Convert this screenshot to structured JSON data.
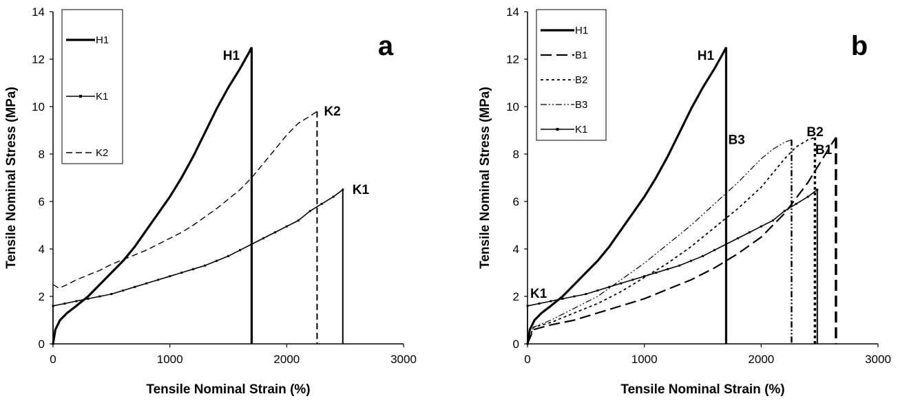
{
  "chart_data": [
    {
      "type": "line",
      "panel_label": "a",
      "xlabel": "Tensile Nominal Strain (%)",
      "ylabel": "Tensile Nominal Stress (MPa)",
      "xlim": [
        0,
        3000
      ],
      "ylim": [
        0,
        14
      ],
      "xticks": [
        "0",
        "1000",
        "2000",
        "3000"
      ],
      "yticks": [
        "0",
        "2",
        "4",
        "6",
        "8",
        "10",
        "12",
        "14"
      ],
      "grid": false,
      "legend_position": "top-left",
      "series": [
        {
          "name": "H1",
          "style": "solid-thick",
          "x": [
            0,
            20,
            60,
            120,
            200,
            300,
            400,
            500,
            600,
            700,
            800,
            900,
            1000,
            1100,
            1200,
            1300,
            1400,
            1500,
            1600,
            1680,
            1700,
            1700
          ],
          "y": [
            0,
            0.6,
            1.0,
            1.3,
            1.6,
            2.0,
            2.5,
            3.0,
            3.5,
            4.1,
            4.8,
            5.5,
            6.2,
            7.0,
            7.9,
            8.9,
            9.9,
            10.8,
            11.6,
            12.3,
            12.5,
            0
          ]
        },
        {
          "name": "K1",
          "style": "solid-marker",
          "x": [
            0,
            0,
            100,
            200,
            300,
            400,
            500,
            600,
            700,
            800,
            900,
            1000,
            1100,
            1200,
            1300,
            1400,
            1500,
            1600,
            1700,
            1800,
            1900,
            2000,
            2100,
            2200,
            2300,
            2400,
            2480,
            2480
          ],
          "y": [
            0,
            1.6,
            1.7,
            1.8,
            1.9,
            2.0,
            2.1,
            2.25,
            2.4,
            2.55,
            2.7,
            2.85,
            3.0,
            3.15,
            3.3,
            3.5,
            3.7,
            3.95,
            4.2,
            4.45,
            4.7,
            4.95,
            5.2,
            5.6,
            5.9,
            6.2,
            6.5,
            0
          ]
        },
        {
          "name": "K2",
          "style": "dashed",
          "x": [
            0,
            50,
            100,
            200,
            300,
            400,
            500,
            600,
            700,
            800,
            900,
            1000,
            1100,
            1200,
            1300,
            1400,
            1500,
            1600,
            1700,
            1800,
            1900,
            2000,
            2100,
            2200,
            2260,
            2260
          ],
          "y": [
            2.5,
            2.35,
            2.45,
            2.7,
            2.9,
            3.1,
            3.35,
            3.55,
            3.75,
            3.95,
            4.2,
            4.45,
            4.7,
            5.0,
            5.35,
            5.7,
            6.1,
            6.5,
            7.0,
            7.6,
            8.2,
            8.8,
            9.3,
            9.6,
            9.8,
            0
          ]
        }
      ],
      "annotations": [
        {
          "text": "H1",
          "x": 1690,
          "y": 12.0
        },
        {
          "text": "K2",
          "x": 2260,
          "y": 9.8
        },
        {
          "text": "K1",
          "x": 2480,
          "y": 6.5
        }
      ]
    },
    {
      "type": "line",
      "panel_label": "b",
      "xlabel": "Tensile Nominal Strain (%)",
      "ylabel": "Tensile Nominal Stress (MPa)",
      "xlim": [
        0,
        3000
      ],
      "ylim": [
        0,
        14
      ],
      "xticks": [
        "0",
        "1000",
        "2000",
        "3000"
      ],
      "yticks": [
        "0",
        "2",
        "4",
        "6",
        "8",
        "10",
        "12",
        "14"
      ],
      "grid": false,
      "legend_position": "top-left",
      "series": [
        {
          "name": "H1",
          "style": "solid-thick",
          "x": [
            0,
            20,
            60,
            120,
            200,
            300,
            400,
            500,
            600,
            700,
            800,
            900,
            1000,
            1100,
            1200,
            1300,
            1400,
            1500,
            1600,
            1680,
            1700,
            1700
          ],
          "y": [
            0,
            0.6,
            1.0,
            1.3,
            1.6,
            2.0,
            2.5,
            3.0,
            3.5,
            4.1,
            4.8,
            5.5,
            6.2,
            7.0,
            7.9,
            8.9,
            9.9,
            10.8,
            11.6,
            12.3,
            12.5,
            0
          ]
        },
        {
          "name": "B1",
          "style": "long-dash",
          "x": [
            0,
            50,
            200,
            400,
            600,
            800,
            1000,
            1200,
            1400,
            1600,
            1800,
            2000,
            2200,
            2400,
            2500,
            2600,
            2640,
            2640
          ],
          "y": [
            0,
            0.6,
            0.8,
            1.0,
            1.3,
            1.6,
            1.9,
            2.3,
            2.7,
            3.2,
            3.8,
            4.5,
            5.5,
            6.8,
            7.6,
            8.4,
            8.7,
            0
          ]
        },
        {
          "name": "B2",
          "style": "short-dash",
          "x": [
            0,
            50,
            200,
            400,
            600,
            800,
            1000,
            1200,
            1400,
            1600,
            1800,
            2000,
            2100,
            2200,
            2300,
            2400,
            2460,
            2460
          ],
          "y": [
            0,
            0.7,
            0.9,
            1.3,
            1.7,
            2.2,
            2.8,
            3.4,
            4.1,
            4.9,
            5.7,
            6.6,
            7.2,
            7.8,
            8.3,
            8.6,
            8.7,
            0
          ]
        },
        {
          "name": "B3",
          "style": "dash-dot-dot",
          "x": [
            0,
            50,
            200,
            400,
            600,
            800,
            1000,
            1200,
            1400,
            1600,
            1800,
            1900,
            2000,
            2100,
            2200,
            2260,
            2260
          ],
          "y": [
            0,
            0.7,
            1.0,
            1.5,
            2.0,
            2.7,
            3.4,
            4.2,
            5.0,
            5.9,
            6.8,
            7.3,
            7.8,
            8.2,
            8.5,
            8.6,
            0
          ]
        },
        {
          "name": "K1",
          "style": "solid-marker",
          "x": [
            0,
            0,
            100,
            200,
            300,
            400,
            500,
            600,
            700,
            800,
            900,
            1000,
            1100,
            1200,
            1300,
            1400,
            1500,
            1600,
            1700,
            1800,
            1900,
            2000,
            2100,
            2200,
            2300,
            2400,
            2480,
            2480
          ],
          "y": [
            0,
            1.6,
            1.7,
            1.8,
            1.9,
            2.0,
            2.1,
            2.25,
            2.4,
            2.55,
            2.7,
            2.85,
            3.0,
            3.15,
            3.3,
            3.5,
            3.7,
            3.95,
            4.2,
            4.45,
            4.7,
            4.95,
            5.2,
            5.6,
            5.9,
            6.2,
            6.5,
            0
          ]
        }
      ],
      "annotations": [
        {
          "text": "H1",
          "x": 1690,
          "y": 12.0
        },
        {
          "text": "B2",
          "x": 2460,
          "y": 8.7
        },
        {
          "text": "B3",
          "x": 2260,
          "y": 8.6
        },
        {
          "text": "B1",
          "x": 2640,
          "y": 8.7
        },
        {
          "text": "K1",
          "x": 0,
          "y": 1.6
        }
      ]
    }
  ]
}
